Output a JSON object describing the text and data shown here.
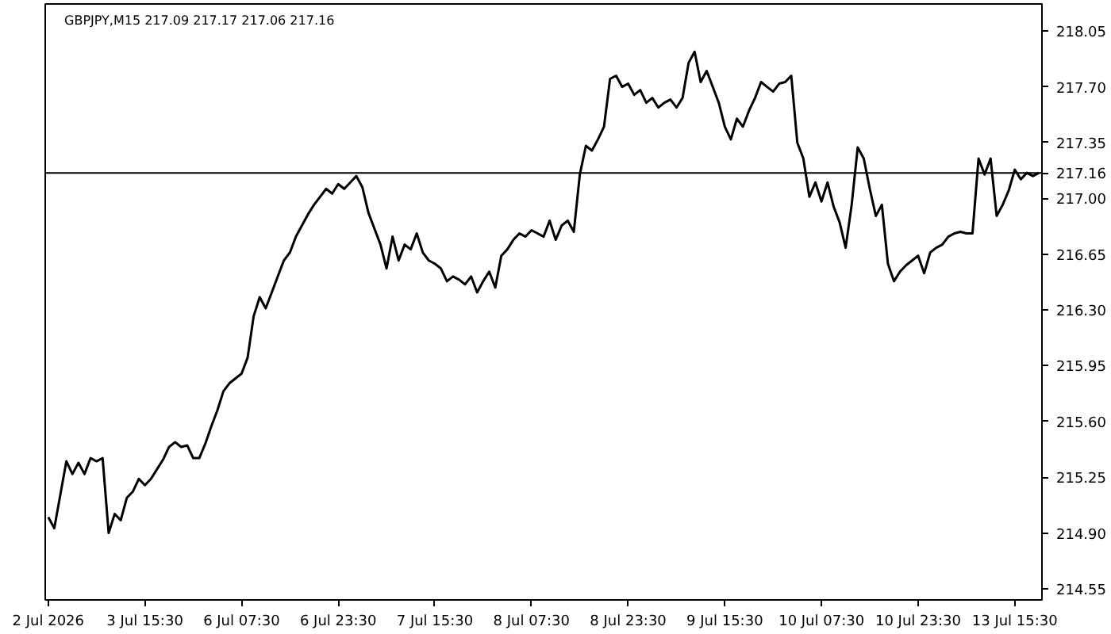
{
  "chart_data": {
    "type": "line",
    "title": "GBPJPY,M15  217.09 217.17 217.06 217.16",
    "categories": [
      "2 Jul 2026",
      null,
      null,
      null,
      null,
      null,
      null,
      null,
      null,
      null,
      null,
      null,
      null,
      null,
      null,
      null,
      "3 Jul 15:30",
      null,
      null,
      null,
      null,
      null,
      null,
      null,
      null,
      null,
      null,
      null,
      null,
      null,
      null,
      null,
      "6 Jul 07:30",
      null,
      null,
      null,
      null,
      null,
      null,
      null,
      null,
      null,
      null,
      null,
      null,
      null,
      null,
      null,
      "6 Jul 23:30",
      null,
      null,
      null,
      null,
      null,
      null,
      null,
      null,
      null,
      null,
      null,
      null,
      null,
      null,
      null,
      "7 Jul 15:30",
      null,
      null,
      null,
      null,
      null,
      null,
      null,
      null,
      null,
      null,
      null,
      null,
      null,
      null,
      null,
      "8 Jul 07:30",
      null,
      null,
      null,
      null,
      null,
      null,
      null,
      null,
      null,
      null,
      null,
      null,
      null,
      null,
      null,
      "8 Jul 23:30",
      null,
      null,
      null,
      null,
      null,
      null,
      null,
      null,
      null,
      null,
      null,
      null,
      null,
      null,
      null,
      "9 Jul 15:30",
      null,
      null,
      null,
      null,
      null,
      null,
      null,
      null,
      null,
      null,
      null,
      null,
      null,
      null,
      null,
      "10 Jul 07:30",
      null,
      null,
      null,
      null,
      null,
      null,
      null,
      null,
      null,
      null,
      null,
      null,
      null,
      null,
      null,
      "10 Jul 23:30",
      null,
      null,
      null,
      null,
      null,
      null,
      null,
      null,
      null,
      null,
      null,
      null,
      null,
      null,
      null,
      "13 Jul 15:30",
      null,
      null,
      null,
      null
    ],
    "series": [
      {
        "color": "#000000",
        "values": [
          215.0,
          214.93,
          215.14,
          215.35,
          215.27,
          215.34,
          215.27,
          215.37,
          215.35,
          215.37,
          214.9,
          215.02,
          214.98,
          215.12,
          215.16,
          215.24,
          215.2,
          215.24,
          215.3,
          215.36,
          215.44,
          215.47,
          215.44,
          215.45,
          215.37,
          215.37,
          215.46,
          215.57,
          215.67,
          215.79,
          215.84,
          215.87,
          215.9,
          216.0,
          216.26,
          216.38,
          216.31,
          216.41,
          216.51,
          216.61,
          216.66,
          216.76,
          216.83,
          216.9,
          216.96,
          217.01,
          217.06,
          217.03,
          217.09,
          217.06,
          217.1,
          217.14,
          217.07,
          216.91,
          216.81,
          216.71,
          216.56,
          216.76,
          216.61,
          216.71,
          216.68,
          216.78,
          216.66,
          216.61,
          216.59,
          216.56,
          216.48,
          216.51,
          216.49,
          216.46,
          216.51,
          216.41,
          216.48,
          216.54,
          216.44,
          216.64,
          216.68,
          216.74,
          216.78,
          216.76,
          216.8,
          216.78,
          216.76,
          216.86,
          216.74,
          216.83,
          216.86,
          216.79,
          217.15,
          217.33,
          217.3,
          217.37,
          217.45,
          217.75,
          217.77,
          217.7,
          217.72,
          217.65,
          217.68,
          217.6,
          217.63,
          217.57,
          217.6,
          217.62,
          217.57,
          217.63,
          217.85,
          217.92,
          217.73,
          217.8,
          217.7,
          217.6,
          217.45,
          217.37,
          217.5,
          217.45,
          217.55,
          217.63,
          217.73,
          217.7,
          217.67,
          217.72,
          217.73,
          217.77,
          217.35,
          217.25,
          217.01,
          217.1,
          216.98,
          217.1,
          216.95,
          216.85,
          216.69,
          216.96,
          217.32,
          217.25,
          217.06,
          216.89,
          216.96,
          216.59,
          216.48,
          216.54,
          216.58,
          216.61,
          216.64,
          216.53,
          216.66,
          216.69,
          216.71,
          216.76,
          216.78,
          216.79,
          216.78,
          216.78,
          217.25,
          217.15,
          217.25,
          216.89,
          216.96,
          217.05,
          217.18,
          217.12,
          217.16,
          217.14,
          217.16
        ]
      }
    ],
    "ylim": [
      214.48,
      218.22
    ],
    "yticks": [
      {
        "value": 214.55,
        "label": "214.55"
      },
      {
        "value": 214.9,
        "label": "214.90"
      },
      {
        "value": 215.25,
        "label": "215.25"
      },
      {
        "value": 215.6,
        "label": "215.60"
      },
      {
        "value": 215.95,
        "label": "215.95"
      },
      {
        "value": 216.3,
        "label": "216.30"
      },
      {
        "value": 216.65,
        "label": "216.65"
      },
      {
        "value": 217.0,
        "label": "217.00"
      },
      {
        "value": 217.35,
        "label": "217.35"
      },
      {
        "value": 217.7,
        "label": "217.70"
      },
      {
        "value": 218.05,
        "label": "218.05"
      }
    ],
    "ref_lines": [
      {
        "axis": "y",
        "value": 217.16,
        "label": "217.16",
        "color": "#000000"
      }
    ],
    "grid": false
  }
}
